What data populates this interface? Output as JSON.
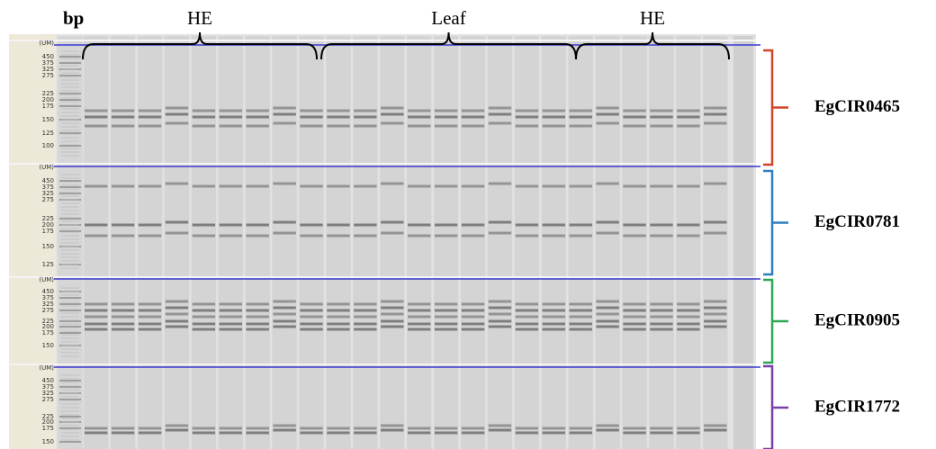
{
  "axis_label": "bp",
  "groups": [
    {
      "label": "HE"
    },
    {
      "label": "Leaf"
    },
    {
      "label": "HE"
    }
  ],
  "panels": [
    {
      "marker": "EgCIR0465",
      "ladder": [
        "(UM)",
        "450",
        "375",
        "325",
        "275",
        "225",
        "200",
        "175",
        "150",
        "125",
        "100"
      ]
    },
    {
      "marker": "EgCIR0781",
      "ladder": [
        "(UM)",
        "450",
        "375",
        "325",
        "275",
        "225",
        "200",
        "175",
        "150",
        "125"
      ]
    },
    {
      "marker": "EgCIR0905",
      "ladder": [
        "(UM)",
        "450",
        "375",
        "325",
        "275",
        "225",
        "200",
        "175",
        "150"
      ]
    },
    {
      "marker": "EgCIR1772",
      "ladder": [
        "(UM)",
        "450",
        "375",
        "325",
        "275",
        "225",
        "200",
        "175",
        "150"
      ]
    }
  ]
}
